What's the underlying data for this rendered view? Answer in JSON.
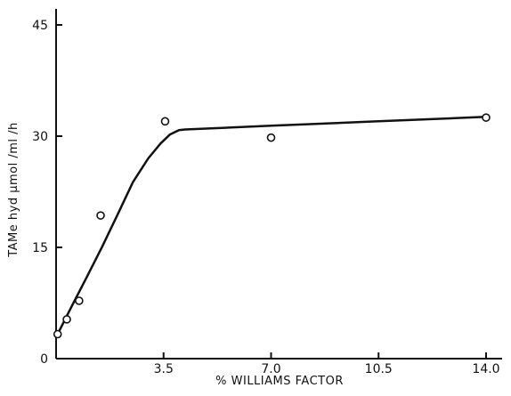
{
  "chart_data": {
    "type": "scatter",
    "xlabel": "% WILLIAMS FACTOR",
    "ylabel": "TAMe hyd µmol /ml /h",
    "xlim": [
      0,
      14.0
    ],
    "ylim": [
      0,
      45
    ],
    "x_ticks": [
      3.5,
      7.0,
      10.5,
      14.0
    ],
    "x_tick_labels": [
      "3.5",
      "7.0",
      "10.5",
      "14.0"
    ],
    "y_ticks": [
      0,
      15,
      30,
      45
    ],
    "y_tick_labels": [
      "0",
      "15",
      "30",
      "45"
    ],
    "grid": false,
    "series": [
      {
        "kind": "points",
        "marker": "open-circle",
        "x": [
          0.05,
          0.35,
          0.75,
          1.45,
          3.55,
          7.0,
          14.0
        ],
        "y": [
          3.3,
          5.3,
          7.8,
          19.3,
          32.0,
          29.8,
          32.5
        ]
      },
      {
        "kind": "fitted-curve",
        "x": [
          0.05,
          0.5,
          1.0,
          1.5,
          2.0,
          2.5,
          3.0,
          3.4,
          3.7,
          4.0,
          4.2,
          7.0,
          10.5,
          14.0
        ],
        "y": [
          3.3,
          7.0,
          11.0,
          15.1,
          19.4,
          23.8,
          27.0,
          29.0,
          30.2,
          30.8,
          30.9,
          31.4,
          32.0,
          32.6
        ]
      }
    ]
  }
}
